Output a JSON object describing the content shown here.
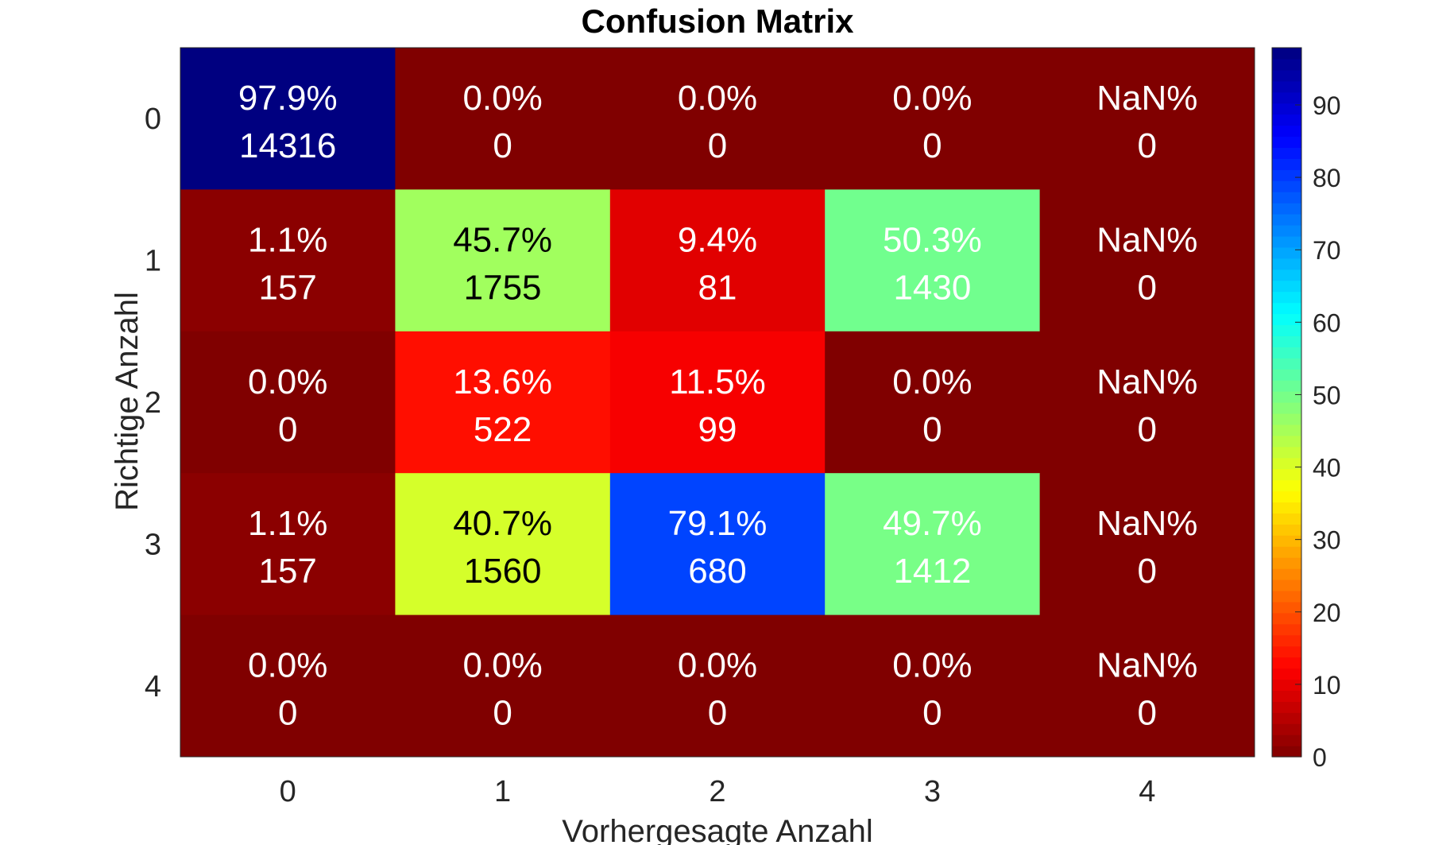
{
  "chart_data": {
    "type": "heatmap",
    "title": "Confusion Matrix",
    "xlabel": "Vorhergesagte Anzahl",
    "ylabel": "Richtige Anzahl",
    "x_categories": [
      "0",
      "1",
      "2",
      "3",
      "4"
    ],
    "y_categories": [
      "0",
      "1",
      "2",
      "3",
      "4"
    ],
    "percent": [
      [
        "97.9%",
        "0.0%",
        "0.0%",
        "0.0%",
        "NaN%"
      ],
      [
        "1.1%",
        "45.7%",
        "9.4%",
        "50.3%",
        "NaN%"
      ],
      [
        "0.0%",
        "13.6%",
        "11.5%",
        "0.0%",
        "NaN%"
      ],
      [
        "1.1%",
        "40.7%",
        "79.1%",
        "49.7%",
        "NaN%"
      ],
      [
        "0.0%",
        "0.0%",
        "0.0%",
        "0.0%",
        "NaN%"
      ]
    ],
    "values": [
      [
        97.9,
        0.0,
        0.0,
        0.0,
        0.0
      ],
      [
        1.1,
        45.7,
        9.4,
        50.3,
        0.0
      ],
      [
        0.0,
        13.6,
        11.5,
        0.0,
        0.0
      ],
      [
        1.1,
        40.7,
        79.1,
        49.7,
        0.0
      ],
      [
        0.0,
        0.0,
        0.0,
        0.0,
        0.0
      ]
    ],
    "counts": [
      [
        "14316",
        "0",
        "0",
        "0",
        "0"
      ],
      [
        "157",
        "1755",
        "81",
        "1430",
        "0"
      ],
      [
        "0",
        "522",
        "99",
        "0",
        "0"
      ],
      [
        "157",
        "1560",
        "680",
        "1412",
        "0"
      ],
      [
        "0",
        "0",
        "0",
        "0",
        "0"
      ]
    ],
    "colormap": "jet",
    "colorbar": {
      "range": [
        0,
        97.9
      ],
      "ticks": [
        "0",
        "10",
        "20",
        "30",
        "40",
        "50",
        "60",
        "70",
        "80",
        "90"
      ]
    }
  }
}
